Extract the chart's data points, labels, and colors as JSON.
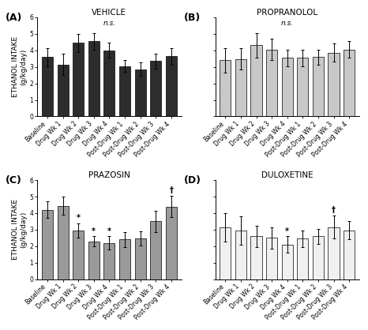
{
  "panels": [
    {
      "label": "(A)",
      "title": "VEHICLE",
      "subtitle": "n.s.",
      "bar_color": "#2d2d2d",
      "show_ylabel": true,
      "values": [
        3.6,
        3.15,
        4.45,
        4.55,
        4.0,
        3.05,
        2.85,
        3.35,
        3.65
      ],
      "errors": [
        0.55,
        0.65,
        0.55,
        0.5,
        0.45,
        0.35,
        0.4,
        0.45,
        0.5
      ],
      "annotations": [
        "",
        "",
        "",
        "",
        "",
        "",
        "",
        "",
        ""
      ]
    },
    {
      "label": "(B)",
      "title": "PROPRANOLOL",
      "subtitle": "n.s.",
      "bar_color": "#c8c8c8",
      "show_ylabel": false,
      "values": [
        3.4,
        3.48,
        4.3,
        4.05,
        3.55,
        3.55,
        3.6,
        3.85,
        4.05
      ],
      "errors": [
        0.75,
        0.65,
        0.75,
        0.65,
        0.5,
        0.5,
        0.45,
        0.55,
        0.5
      ],
      "annotations": [
        "",
        "",
        "",
        "",
        "",
        "",
        "",
        "",
        ""
      ]
    },
    {
      "label": "(C)",
      "title": "PRAZOSIN",
      "subtitle": "",
      "bar_color": "#9a9a9a",
      "show_ylabel": true,
      "values": [
        4.2,
        4.45,
        2.95,
        2.3,
        2.2,
        2.4,
        2.48,
        3.5,
        4.4
      ],
      "errors": [
        0.5,
        0.55,
        0.45,
        0.3,
        0.4,
        0.45,
        0.42,
        0.65,
        0.65
      ],
      "annotations": [
        "",
        "",
        "*",
        "*",
        "*",
        "",
        "",
        "",
        "†"
      ]
    },
    {
      "label": "(D)",
      "title": "DULOXETINE",
      "subtitle": "",
      "bar_color": "#f0f0f0",
      "show_ylabel": false,
      "values": [
        3.15,
        2.95,
        2.6,
        2.5,
        2.1,
        2.45,
        2.6,
        3.15,
        2.95
      ],
      "errors": [
        0.85,
        0.85,
        0.65,
        0.65,
        0.5,
        0.5,
        0.45,
        0.7,
        0.55
      ],
      "annotations": [
        "",
        "",
        "",
        "",
        "*",
        "",
        "",
        "†",
        ""
      ]
    }
  ],
  "categories": [
    "Baseline",
    "Drug Wk 1",
    "Drug Wk 2",
    "Drug Wk 3",
    "Drug Wk 4",
    "Post-Drug Wk 1",
    "Post-Drug Wk 2",
    "Post-Drug Wk 3",
    "Post-Drug Wk 4"
  ],
  "ylim": [
    0,
    6
  ],
  "yticks": [
    0,
    1,
    2,
    3,
    4,
    5,
    6
  ],
  "ylabel": "ETHANOL INTAKE\n(g/kg/day)",
  "tick_fontsize": 5.5,
  "label_fontsize": 6.5,
  "title_fontsize": 7.5,
  "ann_fontsize": 7,
  "subtitle_fontsize": 6.5
}
